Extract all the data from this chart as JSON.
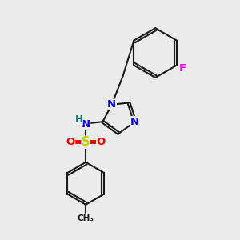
{
  "bg_color": "#ebebeb",
  "bond_color": "#1a1a1a",
  "bond_width": 1.5,
  "atom_colors": {
    "N": "#0000ff",
    "H": "#008080",
    "S": "#cccc00",
    "O": "#ff0000",
    "F": "#ff00ff",
    "C": "#1a1a1a"
  },
  "font_size_atom": 9.5
}
